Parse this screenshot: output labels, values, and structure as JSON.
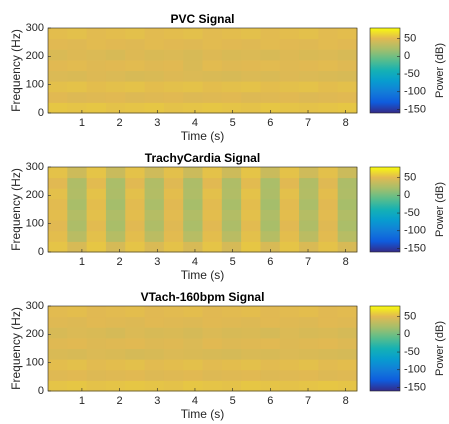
{
  "colormap": "parula",
  "chart_data": [
    {
      "type": "heatmap",
      "title": "PVC Signal",
      "xlabel": "Time (s)",
      "ylabel": "Frequency (Hz)",
      "xlim": [
        0.1,
        8.3
      ],
      "xticks": [
        1,
        2,
        3,
        4,
        5,
        6,
        7,
        8
      ],
      "ylim": [
        0,
        300
      ],
      "yticks": [
        0,
        100,
        200,
        300
      ],
      "z": [
        [
          56,
          55,
          56,
          54,
          55,
          56,
          54,
          55,
          56,
          55,
          54,
          56,
          55,
          54,
          55,
          56
        ],
        [
          50,
          48,
          49,
          50,
          48,
          49,
          50,
          48,
          49,
          50,
          48,
          49,
          50,
          48,
          49,
          50
        ],
        [
          53,
          54,
          52,
          53,
          54,
          52,
          53,
          54,
          52,
          53,
          54,
          52,
          53,
          54,
          52,
          53
        ],
        [
          47,
          46,
          48,
          47,
          45,
          46,
          48,
          47,
          46,
          45,
          47,
          46,
          48,
          47,
          46,
          45
        ],
        [
          50,
          51,
          49,
          50,
          51,
          49,
          50,
          46,
          51,
          49,
          50,
          51,
          49,
          50,
          51,
          49
        ],
        [
          46,
          48,
          47,
          45,
          48,
          46,
          47,
          45,
          48,
          46,
          47,
          45,
          48,
          46,
          47,
          45
        ],
        [
          50,
          49,
          51,
          50,
          49,
          51,
          50,
          49,
          51,
          50,
          49,
          51,
          50,
          49,
          51,
          50
        ],
        [
          52,
          53,
          51,
          52,
          53,
          51,
          52,
          53,
          51,
          52,
          53,
          51,
          52,
          53,
          51,
          52
        ]
      ],
      "colorbar": {
        "label": "Power (dB)",
        "clim": [
          -160,
          80
        ],
        "ticks": [
          -150,
          -100,
          -50,
          0,
          50
        ]
      }
    },
    {
      "type": "heatmap",
      "title": "TrachyCardia Signal",
      "xlabel": "Time (s)",
      "ylabel": "Frequency (Hz)",
      "xlim": [
        0.1,
        8.3
      ],
      "xticks": [
        1,
        2,
        3,
        4,
        5,
        6,
        7,
        8
      ],
      "ylim": [
        0,
        300
      ],
      "yticks": [
        0,
        100,
        200,
        300
      ],
      "z": [
        [
          55,
          45,
          56,
          44,
          55,
          46,
          54,
          45,
          55,
          44,
          56,
          45,
          55,
          46,
          54,
          45
        ],
        [
          52,
          30,
          53,
          28,
          52,
          31,
          51,
          29,
          52,
          30,
          53,
          28,
          52,
          31,
          51,
          29
        ],
        [
          50,
          24,
          51,
          22,
          50,
          25,
          49,
          23,
          50,
          24,
          51,
          22,
          50,
          25,
          49,
          23
        ],
        [
          52,
          27,
          53,
          25,
          52,
          28,
          51,
          26,
          52,
          27,
          53,
          25,
          52,
          28,
          51,
          26
        ],
        [
          51,
          22,
          52,
          20,
          51,
          23,
          50,
          21,
          51,
          22,
          52,
          20,
          51,
          23,
          50,
          21
        ],
        [
          53,
          26,
          54,
          24,
          53,
          27,
          52,
          25,
          53,
          26,
          54,
          24,
          53,
          27,
          52,
          25
        ],
        [
          50,
          25,
          51,
          23,
          50,
          26,
          49,
          24,
          50,
          25,
          51,
          23,
          50,
          26,
          49,
          24
        ],
        [
          54,
          40,
          55,
          38,
          54,
          41,
          53,
          39,
          54,
          40,
          55,
          38,
          54,
          41,
          53,
          39
        ]
      ],
      "colorbar": {
        "label": "Power (dB)",
        "clim": [
          -160,
          80
        ],
        "ticks": [
          -150,
          -100,
          -50,
          0,
          50
        ]
      }
    },
    {
      "type": "heatmap",
      "title": "VTach-160bpm Signal",
      "xlabel": "Time (s)",
      "ylabel": "Frequency (Hz)",
      "xlim": [
        0.1,
        8.3
      ],
      "xticks": [
        1,
        2,
        3,
        4,
        5,
        6,
        7,
        8
      ],
      "ylim": [
        0,
        300
      ],
      "yticks": [
        0,
        100,
        200,
        300
      ],
      "z": [
        [
          55,
          56,
          54,
          55,
          56,
          55,
          54,
          56,
          55,
          54,
          56,
          55,
          54,
          55,
          56,
          55
        ],
        [
          49,
          50,
          48,
          49,
          50,
          48,
          49,
          50,
          48,
          49,
          50,
          48,
          49,
          50,
          48,
          49
        ],
        [
          52,
          53,
          51,
          52,
          53,
          51,
          52,
          53,
          51,
          52,
          53,
          51,
          52,
          53,
          51,
          52
        ],
        [
          46,
          45,
          47,
          46,
          44,
          45,
          47,
          46,
          45,
          44,
          46,
          45,
          47,
          46,
          45,
          44
        ],
        [
          49,
          50,
          48,
          49,
          50,
          48,
          49,
          47,
          50,
          48,
          49,
          50,
          48,
          49,
          50,
          48
        ],
        [
          45,
          47,
          46,
          44,
          47,
          45,
          46,
          44,
          47,
          45,
          46,
          44,
          47,
          45,
          46,
          44
        ],
        [
          49,
          48,
          50,
          49,
          48,
          50,
          49,
          48,
          50,
          49,
          48,
          50,
          49,
          48,
          50,
          49
        ],
        [
          51,
          52,
          50,
          51,
          52,
          50,
          51,
          52,
          50,
          51,
          52,
          50,
          51,
          52,
          50,
          51
        ]
      ],
      "colorbar": {
        "label": "Power (dB)",
        "clim": [
          -160,
          80
        ],
        "ticks": [
          -150,
          -100,
          -50,
          0,
          50
        ]
      }
    }
  ]
}
